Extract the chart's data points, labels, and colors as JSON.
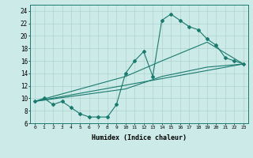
{
  "line1_x": [
    0,
    1,
    2,
    3,
    4,
    5,
    6,
    7,
    8,
    9,
    10,
    11,
    12,
    13,
    14,
    15,
    16,
    17,
    18,
    19,
    20,
    21,
    22,
    23
  ],
  "line1_y": [
    9.5,
    10.0,
    9.0,
    9.5,
    8.5,
    7.5,
    7.0,
    7.0,
    7.0,
    9.0,
    14.0,
    16.0,
    17.5,
    13.5,
    22.5,
    23.5,
    22.5,
    21.5,
    21.0,
    19.5,
    18.5,
    16.5,
    16.0,
    15.5
  ],
  "line2_x": [
    0,
    10,
    14,
    19,
    23
  ],
  "line2_y": [
    9.5,
    13.5,
    16.0,
    19.0,
    15.5
  ],
  "line3_x": [
    0,
    10,
    14,
    19,
    23
  ],
  "line3_y": [
    9.5,
    11.5,
    13.5,
    15.0,
    15.5
  ],
  "line4_x": [
    0,
    23
  ],
  "line4_y": [
    9.5,
    15.5
  ],
  "line_color": "#1a7a6e",
  "bg_color": "#cceae8",
  "grid_color": "#aed4d0",
  "xlabel": "Humidex (Indice chaleur)",
  "xlim": [
    -0.5,
    23.5
  ],
  "ylim": [
    6,
    25
  ],
  "xticks": [
    0,
    1,
    2,
    3,
    4,
    5,
    6,
    7,
    8,
    9,
    10,
    11,
    12,
    13,
    14,
    15,
    16,
    17,
    18,
    19,
    20,
    21,
    22,
    23
  ],
  "yticks": [
    6,
    8,
    10,
    12,
    14,
    16,
    18,
    20,
    22,
    24
  ]
}
